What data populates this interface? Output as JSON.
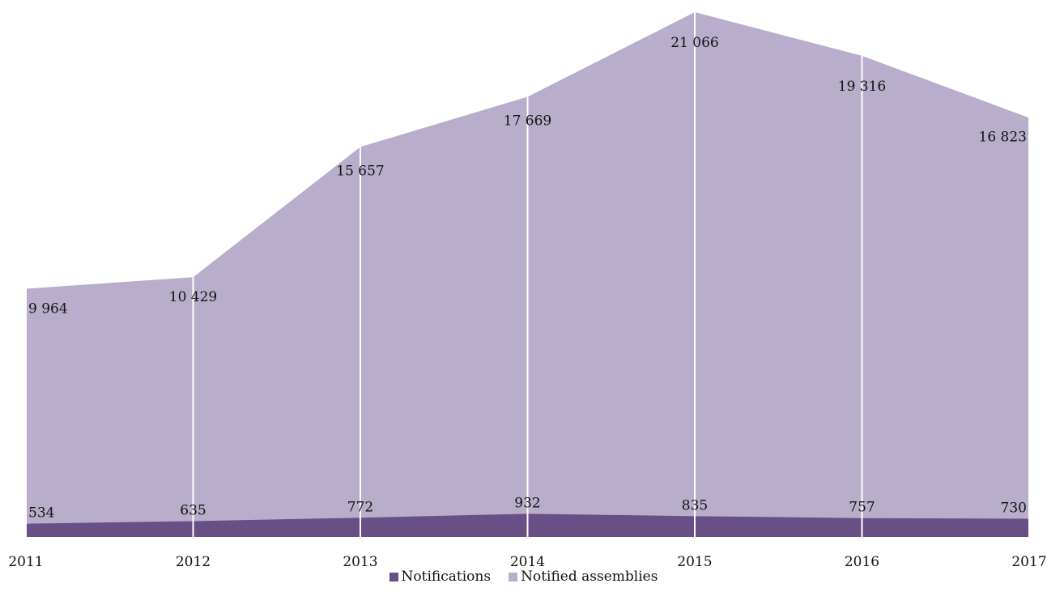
{
  "chart_data": {
    "type": "area",
    "stacked": false,
    "x": [
      "2011",
      "2012",
      "2013",
      "2014",
      "2015",
      "2016",
      "2017"
    ],
    "series": [
      {
        "name": "Notifications",
        "values": [
          534,
          635,
          772,
          932,
          835,
          757,
          730
        ],
        "labels": [
          "534",
          "635",
          "772",
          "932",
          "835",
          "757",
          "730"
        ],
        "color": "#684f86"
      },
      {
        "name": "Notified assemblies",
        "values": [
          9964,
          10429,
          15657,
          17669,
          21066,
          19316,
          16823
        ],
        "labels": [
          "9 964",
          "10 429",
          "15 657",
          "17 669",
          "21 066",
          "19 316",
          "16 823"
        ],
        "color": "#b8aecb"
      }
    ],
    "ylim": [
      0,
      21066
    ],
    "y_axis_visible": false,
    "grid": "vertical white lines at each year",
    "legend": "bottom-center"
  }
}
